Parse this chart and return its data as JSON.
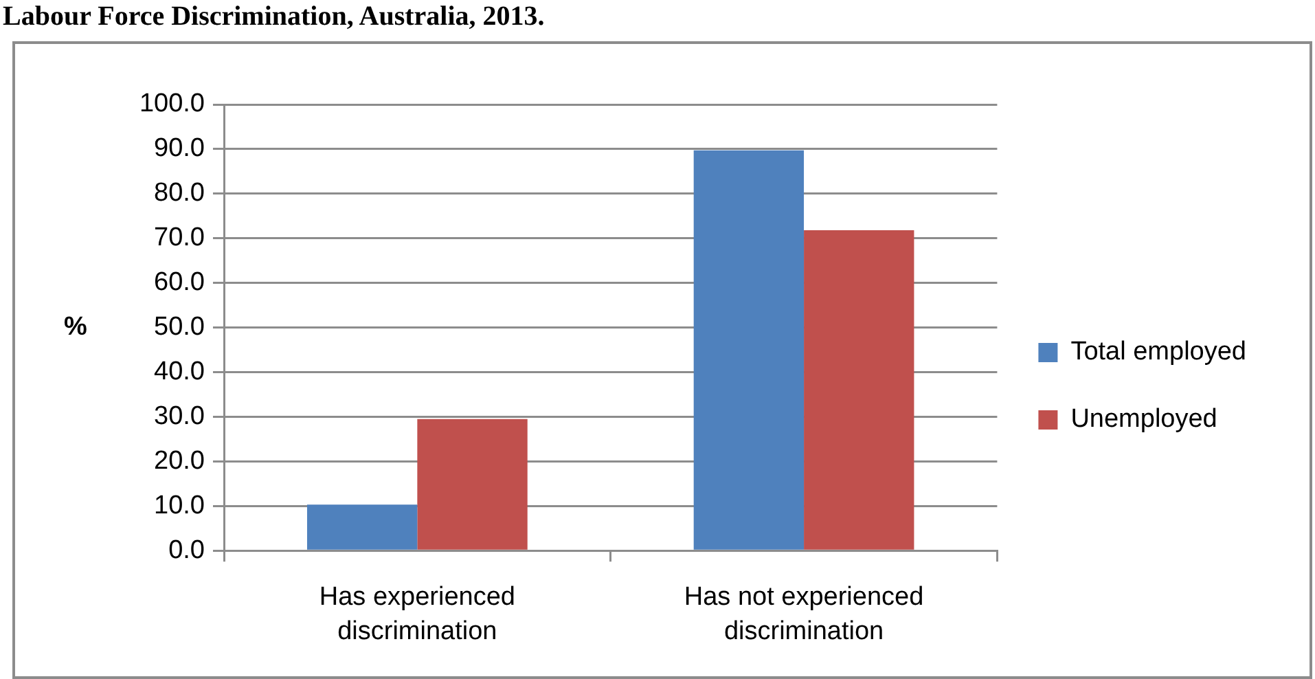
{
  "chart_data": {
    "type": "bar",
    "title": "Labour Force Discrimination, Australia, 2013.",
    "ylabel": "%",
    "categories": [
      "Has experienced discrimination",
      "Has not experienced discrimination"
    ],
    "series": [
      {
        "name": "Total employed",
        "color": "#4f81bd",
        "values": [
          10.3,
          89.7
        ]
      },
      {
        "name": "Unemployed",
        "color": "#c0504d",
        "values": [
          29.5,
          71.8
        ]
      }
    ],
    "ylim": [
      0,
      100
    ],
    "yticks": [
      {
        "value": 0,
        "label": "0.0"
      },
      {
        "value": 10,
        "label": "10.0"
      },
      {
        "value": 20,
        "label": "20.0"
      },
      {
        "value": 30,
        "label": "30.0"
      },
      {
        "value": 40,
        "label": "40.0"
      },
      {
        "value": 50,
        "label": "50.0"
      },
      {
        "value": 60,
        "label": "60.0"
      },
      {
        "value": 70,
        "label": "70.0"
      },
      {
        "value": 80,
        "label": "80.0"
      },
      {
        "value": 90,
        "label": "90.0"
      },
      {
        "value": 100,
        "label": "100.0"
      }
    ],
    "grid": "y",
    "legend": "right"
  }
}
